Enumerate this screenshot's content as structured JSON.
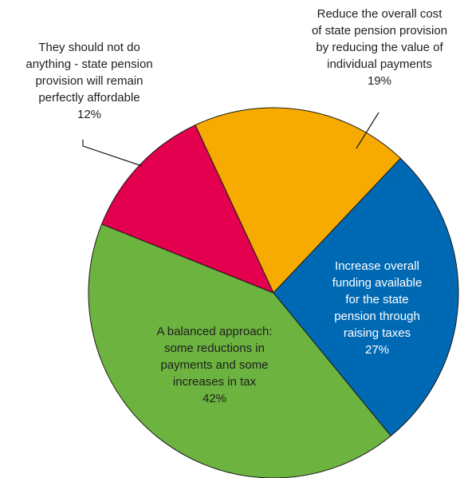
{
  "chart_data": {
    "type": "pie",
    "title": "",
    "slices": [
      {
        "label": "Reduce the overall cost of state pension provision by reducing the value of individual payments",
        "value": 19,
        "display": "19%",
        "color": "#f7ab00"
      },
      {
        "label": "Increase overall funding available for the state pension through raising taxes",
        "value": 27,
        "display": "27%",
        "color": "#0069b4"
      },
      {
        "label": "A balanced approach: some reductions in payments and some increases in tax",
        "value": 42,
        "display": "42%",
        "color": "#6cb33f"
      },
      {
        "label": "They should not do anything - state pension provision will remain perfectly affordable",
        "value": 12,
        "display": "12%",
        "color": "#e2004f"
      }
    ]
  },
  "labels": {
    "reduce": [
      "Reduce the overall cost",
      "of state pension provision",
      "by reducing the value of",
      "individual payments",
      "19%"
    ],
    "increase": [
      "Increase overall",
      "funding available",
      "for the state",
      "pension through",
      "raising taxes",
      "27%"
    ],
    "balanced": [
      "A balanced approach:",
      "some reductions in",
      "payments and some",
      "increases in tax",
      "42%"
    ],
    "nothing": [
      "They should not do",
      "anything - state pension",
      "provision will remain",
      "perfectly affordable",
      "12%"
    ]
  }
}
